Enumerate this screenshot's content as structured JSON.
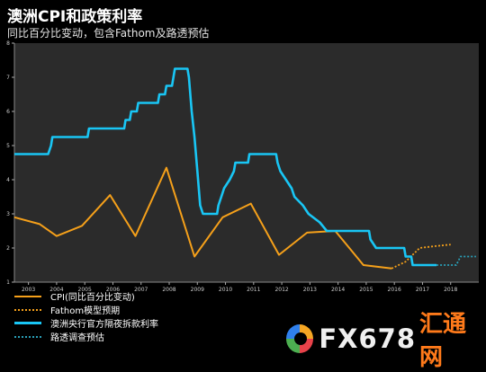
{
  "header": {
    "title": "澳洲CPI和政策利率",
    "subtitle": "同比百分比变动，包含Fathom及路透预估"
  },
  "watermark": {
    "name": "FX678",
    "cn": "汇通网"
  },
  "colors": {
    "background": "#000000",
    "plot_bg": "#2b2b2b",
    "cpi": "#f5a01a",
    "fathom": "#f5a01a",
    "cash_rate": "#19c6f5",
    "reuters": "#2aa0b8"
  },
  "chart_data": {
    "type": "line",
    "x_axis": {
      "min": 2002.5,
      "max": 2019,
      "ticks": [
        2003,
        2004,
        2005,
        2006,
        2007,
        2008,
        2009,
        2010,
        2011,
        2012,
        2013,
        2014,
        2015,
        2016,
        2017,
        2018
      ]
    },
    "y_axis": {
      "min": 1,
      "max": 8,
      "ticks": [
        1,
        2,
        3,
        4,
        5,
        6,
        7,
        8
      ]
    },
    "grid": false,
    "legend_position": "bottom-left",
    "series": [
      {
        "name": "CPI(同比百分比变动)",
        "style": "solid",
        "color_key": "cpi",
        "points": [
          [
            2002.5,
            2.9
          ],
          [
            2003.4,
            2.7
          ],
          [
            2004.0,
            2.35
          ],
          [
            2004.9,
            2.65
          ],
          [
            2005.9,
            3.55
          ],
          [
            2006.8,
            2.35
          ],
          [
            2007.9,
            4.35
          ],
          [
            2008.9,
            1.75
          ],
          [
            2009.9,
            2.9
          ],
          [
            2010.9,
            3.3
          ],
          [
            2011.9,
            1.8
          ],
          [
            2012.9,
            2.45
          ],
          [
            2013.9,
            2.5
          ],
          [
            2014.9,
            1.5
          ],
          [
            2015.9,
            1.4
          ]
        ]
      },
      {
        "name": "Fathom模型预期",
        "style": "dotted",
        "color_key": "fathom",
        "points": [
          [
            2015.9,
            1.4
          ],
          [
            2016.4,
            1.6
          ],
          [
            2016.9,
            2.0
          ],
          [
            2017.4,
            2.05
          ],
          [
            2018.0,
            2.1
          ]
        ]
      },
      {
        "name": "澳洲央行官方隔夜拆款利率",
        "style": "solid",
        "color_key": "cash_rate",
        "points": [
          [
            2002.5,
            4.75
          ],
          [
            2003.7,
            4.75
          ],
          [
            2003.8,
            5.0
          ],
          [
            2003.85,
            5.25
          ],
          [
            2005.1,
            5.25
          ],
          [
            2005.15,
            5.5
          ],
          [
            2006.4,
            5.5
          ],
          [
            2006.45,
            5.75
          ],
          [
            2006.6,
            5.75
          ],
          [
            2006.65,
            6.0
          ],
          [
            2006.85,
            6.0
          ],
          [
            2006.9,
            6.25
          ],
          [
            2007.6,
            6.25
          ],
          [
            2007.65,
            6.5
          ],
          [
            2007.85,
            6.5
          ],
          [
            2007.9,
            6.75
          ],
          [
            2008.1,
            6.75
          ],
          [
            2008.15,
            7.0
          ],
          [
            2008.2,
            7.25
          ],
          [
            2008.65,
            7.25
          ],
          [
            2008.7,
            7.0
          ],
          [
            2008.8,
            6.0
          ],
          [
            2008.9,
            5.25
          ],
          [
            2009.0,
            4.25
          ],
          [
            2009.1,
            3.25
          ],
          [
            2009.2,
            3.0
          ],
          [
            2009.7,
            3.0
          ],
          [
            2009.75,
            3.25
          ],
          [
            2009.85,
            3.5
          ],
          [
            2009.95,
            3.75
          ],
          [
            2010.15,
            4.0
          ],
          [
            2010.3,
            4.25
          ],
          [
            2010.35,
            4.5
          ],
          [
            2010.8,
            4.5
          ],
          [
            2010.85,
            4.75
          ],
          [
            2011.8,
            4.75
          ],
          [
            2011.85,
            4.5
          ],
          [
            2011.95,
            4.25
          ],
          [
            2012.35,
            3.75
          ],
          [
            2012.45,
            3.5
          ],
          [
            2012.75,
            3.25
          ],
          [
            2012.95,
            3.0
          ],
          [
            2013.35,
            2.75
          ],
          [
            2013.6,
            2.5
          ],
          [
            2015.1,
            2.5
          ],
          [
            2015.15,
            2.25
          ],
          [
            2015.35,
            2.0
          ],
          [
            2016.35,
            2.0
          ],
          [
            2016.4,
            1.75
          ],
          [
            2016.6,
            1.75
          ],
          [
            2016.65,
            1.5
          ],
          [
            2017.5,
            1.5
          ]
        ]
      },
      {
        "name": "路透调查预估",
        "style": "dotted",
        "color_key": "reuters",
        "points": [
          [
            2017.5,
            1.5
          ],
          [
            2018.2,
            1.5
          ],
          [
            2018.35,
            1.75
          ],
          [
            2018.9,
            1.75
          ]
        ]
      }
    ]
  }
}
